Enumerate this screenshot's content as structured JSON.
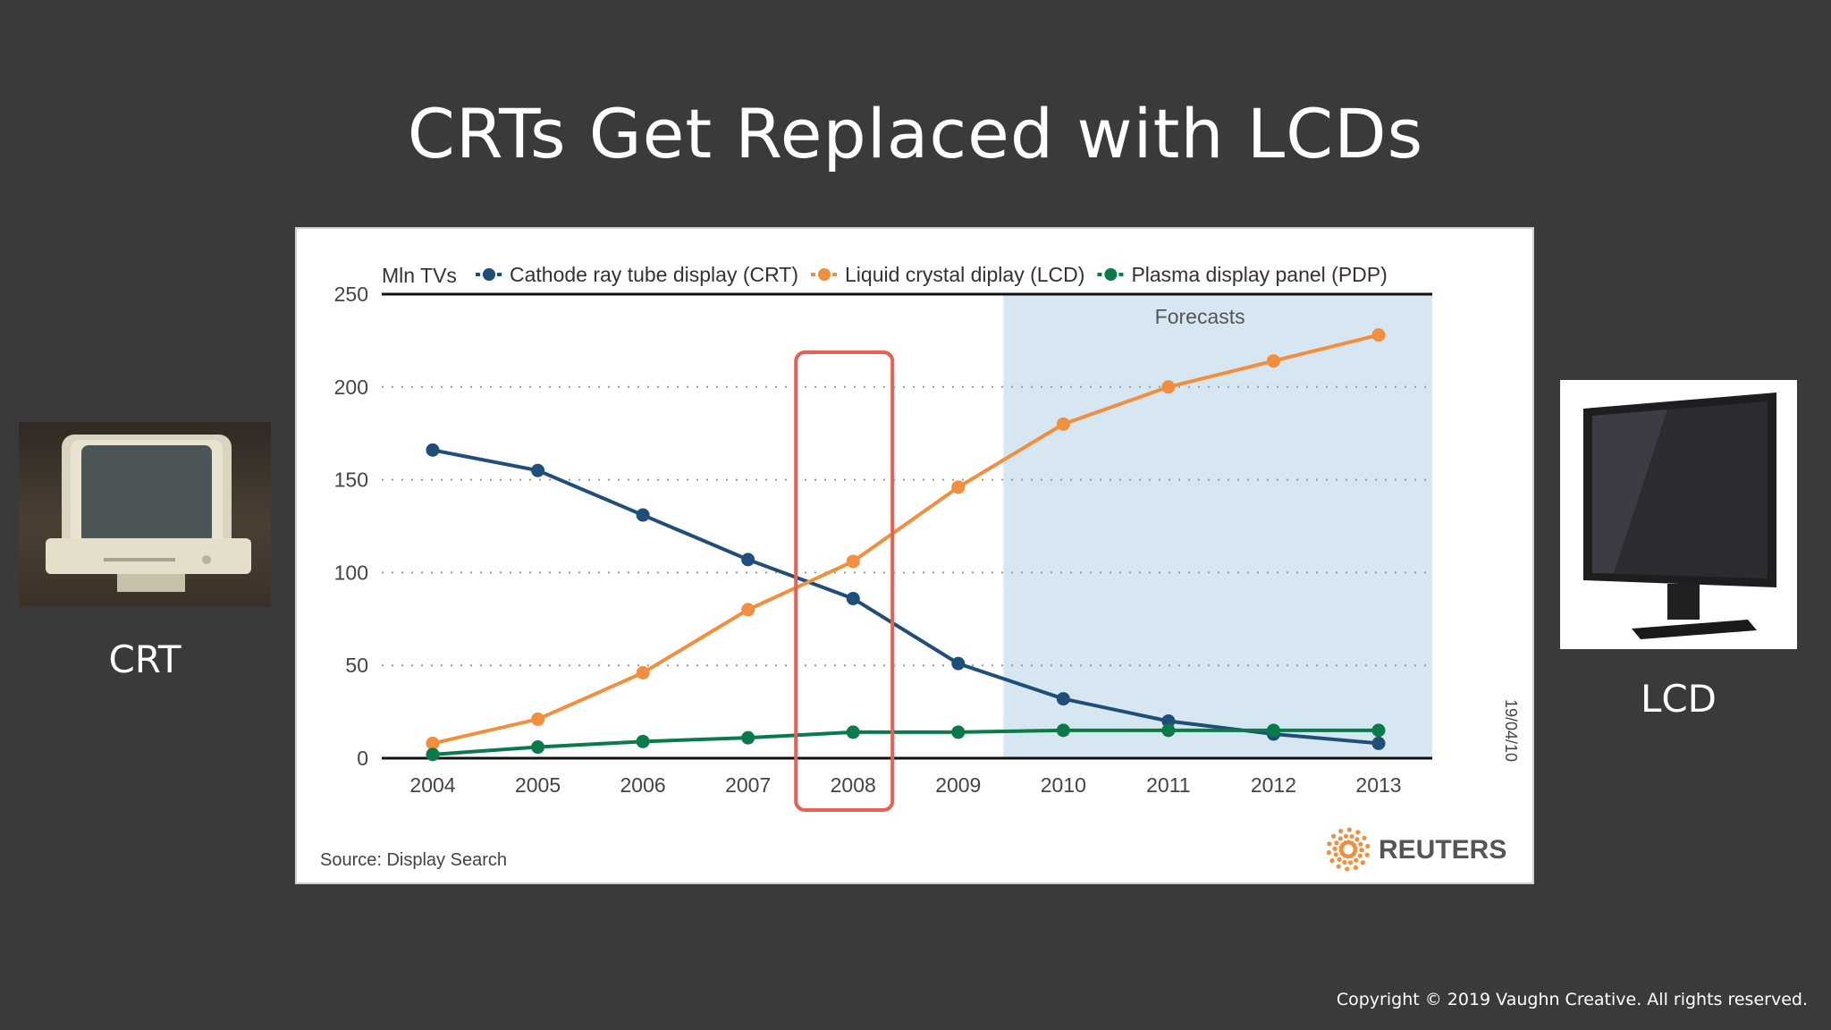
{
  "slide": {
    "title": "CRTs Get Replaced with LCDs",
    "crt_label": "CRT",
    "lcd_label": "LCD",
    "copyright": "Copyright © 2019 Vaughn Creative. All rights reserved."
  },
  "chart_data": {
    "type": "line",
    "ylabel": "Mln TVs",
    "categories": [
      "2004",
      "2005",
      "2006",
      "2007",
      "2008",
      "2009",
      "2010",
      "2011",
      "2012",
      "2013"
    ],
    "ylim": [
      0,
      250
    ],
    "yticks": [
      0,
      50,
      100,
      150,
      200,
      250
    ],
    "grid": true,
    "legend_position": "top",
    "series": [
      {
        "name": "Cathode ray tube display (CRT)",
        "color": "#1f4e79",
        "values": [
          166,
          155,
          131,
          107,
          86,
          51,
          32,
          20,
          13,
          8
        ]
      },
      {
        "name": "Liquid crystal diplay (LCD)",
        "color": "#f28e3c",
        "values": [
          8,
          21,
          46,
          80,
          106,
          146,
          180,
          200,
          214,
          228
        ]
      },
      {
        "name": "Plasma display panel (PDP)",
        "color": "#0b7a4b",
        "values": [
          2,
          6,
          9,
          11,
          14,
          14,
          15,
          15,
          15,
          15
        ]
      }
    ],
    "forecast_label": "Forecasts",
    "forecast_start": "2010",
    "highlight_category": "2008",
    "highlight_color": "#e8604f",
    "forecast_color": "#d7e7f1",
    "source": "Source: Display Search",
    "date_stamp": "19/04/10",
    "brand": "REUTERS"
  }
}
